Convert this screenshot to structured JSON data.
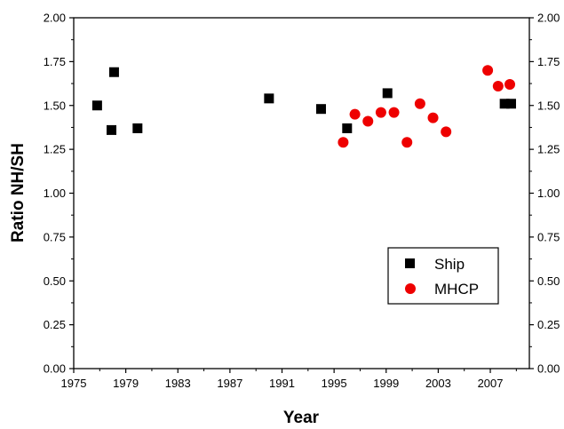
{
  "chart_data": {
    "type": "scatter",
    "xlabel": "Year",
    "ylabel": "Ratio NH/SH",
    "xlim": [
      1975,
      2010
    ],
    "ylim": [
      0,
      2
    ],
    "x_ticks": [
      1975,
      1979,
      1983,
      1987,
      1991,
      1995,
      1999,
      2003,
      2007
    ],
    "x_tick_labels": [
      "1975",
      "1979",
      "1983",
      "1987",
      "1991",
      "1995",
      "1999",
      "2003",
      "2007"
    ],
    "y_ticks": [
      0,
      0.25,
      0.5,
      0.75,
      1.0,
      1.25,
      1.5,
      1.75,
      2.0
    ],
    "y_tick_labels": [
      "0.00",
      "0.25",
      "0.50",
      "0.75",
      "1.00",
      "1.25",
      "1.50",
      "1.75",
      "2.00"
    ],
    "right_y_axis": true,
    "grid": false,
    "legend_position": "bottom-right",
    "series": [
      {
        "name": "Ship",
        "marker": "square",
        "color": "#000000",
        "points": [
          {
            "x": 1976.8,
            "y": 1.5
          },
          {
            "x": 1977.9,
            "y": 1.36
          },
          {
            "x": 1978.1,
            "y": 1.69
          },
          {
            "x": 1979.9,
            "y": 1.37
          },
          {
            "x": 1990.0,
            "y": 1.54
          },
          {
            "x": 1994.0,
            "y": 1.48
          },
          {
            "x": 1996.0,
            "y": 1.37
          },
          {
            "x": 1999.1,
            "y": 1.57
          },
          {
            "x": 2008.1,
            "y": 1.51
          },
          {
            "x": 2008.6,
            "y": 1.51
          }
        ]
      },
      {
        "name": "MHCP",
        "marker": "circle",
        "color": "#ee0000",
        "points": [
          {
            "x": 1995.7,
            "y": 1.29
          },
          {
            "x": 1996.6,
            "y": 1.45
          },
          {
            "x": 1997.6,
            "y": 1.41
          },
          {
            "x": 1998.6,
            "y": 1.46
          },
          {
            "x": 1999.6,
            "y": 1.46
          },
          {
            "x": 2000.6,
            "y": 1.29
          },
          {
            "x": 2001.6,
            "y": 1.51
          },
          {
            "x": 2002.6,
            "y": 1.43
          },
          {
            "x": 2003.6,
            "y": 1.35
          },
          {
            "x": 2006.8,
            "y": 1.7
          },
          {
            "x": 2007.6,
            "y": 1.61
          },
          {
            "x": 2008.5,
            "y": 1.62
          }
        ]
      }
    ]
  }
}
